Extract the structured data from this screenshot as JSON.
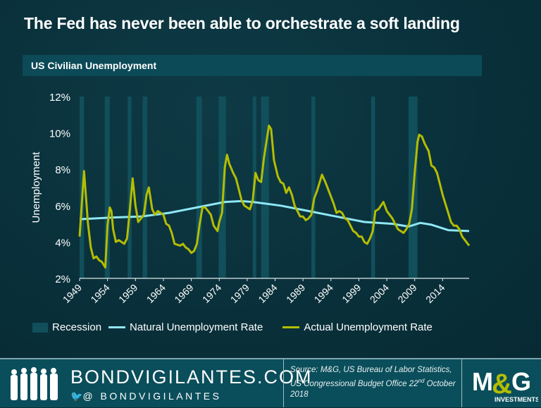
{
  "header": {
    "title": "The Fed has never been able to orchestrate a soft landing",
    "subtitle": "US Civilian Unemployment"
  },
  "chart_data": {
    "type": "line",
    "ylabel": "Unemployment",
    "ylim": [
      2,
      12
    ],
    "yticks": [
      "2%",
      "4%",
      "6%",
      "8%",
      "10%",
      "12%"
    ],
    "ytick_values": [
      2,
      4,
      6,
      8,
      10,
      12
    ],
    "xlim": [
      1949,
      2018.75
    ],
    "xticks": [
      "1949",
      "1954",
      "1959",
      "1964",
      "1969",
      "1974",
      "1979",
      "1984",
      "1989",
      "1994",
      "1999",
      "2004",
      "2009",
      "2014"
    ],
    "grid": false,
    "legend_placement": "bottom",
    "recessions": [
      [
        1948.9,
        1949.8
      ],
      [
        1953.5,
        1954.4
      ],
      [
        1957.6,
        1958.3
      ],
      [
        1960.3,
        1961.1
      ],
      [
        1969.9,
        1970.9
      ],
      [
        1973.9,
        1975.2
      ],
      [
        1980.0,
        1980.5
      ],
      [
        1981.5,
        1982.9
      ],
      [
        1990.5,
        1991.2
      ],
      [
        2001.2,
        2001.9
      ],
      [
        2007.9,
        2009.5
      ]
    ],
    "series": [
      {
        "name": "Natural Unemployment Rate",
        "color": "#8ee8f5",
        "points": [
          [
            1949,
            5.25
          ],
          [
            1955,
            5.35
          ],
          [
            1960,
            5.4
          ],
          [
            1965,
            5.6
          ],
          [
            1970,
            5.9
          ],
          [
            1975,
            6.2
          ],
          [
            1978,
            6.25
          ],
          [
            1980,
            6.2
          ],
          [
            1985,
            6.0
          ],
          [
            1990,
            5.7
          ],
          [
            1995,
            5.4
          ],
          [
            2000,
            5.1
          ],
          [
            2005,
            5.0
          ],
          [
            2007.9,
            4.85
          ],
          [
            2010,
            5.05
          ],
          [
            2012,
            4.95
          ],
          [
            2015,
            4.65
          ],
          [
            2018.75,
            4.6
          ]
        ]
      },
      {
        "name": "Actual Unemployment Rate",
        "color": "#b4bd00",
        "points": [
          [
            1949,
            4.3
          ],
          [
            1949.8,
            7.9
          ],
          [
            1950.5,
            5.0
          ],
          [
            1951,
            3.7
          ],
          [
            1951.5,
            3.1
          ],
          [
            1952,
            3.2
          ],
          [
            1952.5,
            3.0
          ],
          [
            1953,
            2.9
          ],
          [
            1953.6,
            2.6
          ],
          [
            1954,
            4.9
          ],
          [
            1954.4,
            5.9
          ],
          [
            1954.7,
            5.7
          ],
          [
            1955,
            4.7
          ],
          [
            1955.5,
            4.0
          ],
          [
            1956,
            4.1
          ],
          [
            1956.5,
            4.0
          ],
          [
            1957,
            3.9
          ],
          [
            1957.5,
            4.2
          ],
          [
            1958,
            5.8
          ],
          [
            1958.5,
            7.5
          ],
          [
            1959,
            6.0
          ],
          [
            1959.5,
            5.1
          ],
          [
            1960,
            5.3
          ],
          [
            1960.5,
            5.5
          ],
          [
            1961,
            6.6
          ],
          [
            1961.4,
            7.0
          ],
          [
            1962,
            5.8
          ],
          [
            1962.5,
            5.5
          ],
          [
            1963,
            5.7
          ],
          [
            1963.5,
            5.6
          ],
          [
            1964,
            5.5
          ],
          [
            1964.5,
            5.0
          ],
          [
            1965,
            4.9
          ],
          [
            1965.5,
            4.5
          ],
          [
            1966,
            3.9
          ],
          [
            1967,
            3.8
          ],
          [
            1967.5,
            3.9
          ],
          [
            1968,
            3.7
          ],
          [
            1968.5,
            3.6
          ],
          [
            1969,
            3.4
          ],
          [
            1969.5,
            3.5
          ],
          [
            1970,
            3.9
          ],
          [
            1970.5,
            5.0
          ],
          [
            1971,
            5.9
          ],
          [
            1971.5,
            5.9
          ],
          [
            1972,
            5.7
          ],
          [
            1972.5,
            5.5
          ],
          [
            1973,
            4.9
          ],
          [
            1973.7,
            4.6
          ],
          [
            1974,
            5.1
          ],
          [
            1974.5,
            5.6
          ],
          [
            1975,
            8.1
          ],
          [
            1975.4,
            8.8
          ],
          [
            1975.8,
            8.3
          ],
          [
            1976.5,
            7.8
          ],
          [
            1977,
            7.5
          ],
          [
            1977.5,
            6.9
          ],
          [
            1978,
            6.3
          ],
          [
            1978.5,
            6.0
          ],
          [
            1979,
            5.9
          ],
          [
            1979.5,
            5.8
          ],
          [
            1980,
            6.3
          ],
          [
            1980.5,
            7.8
          ],
          [
            1981,
            7.4
          ],
          [
            1981.5,
            7.3
          ],
          [
            1982,
            8.6
          ],
          [
            1982.5,
            9.6
          ],
          [
            1982.9,
            10.4
          ],
          [
            1983.3,
            10.2
          ],
          [
            1983.8,
            8.5
          ],
          [
            1984.5,
            7.6
          ],
          [
            1985,
            7.3
          ],
          [
            1985.5,
            7.2
          ],
          [
            1986,
            6.7
          ],
          [
            1986.5,
            7.0
          ],
          [
            1987,
            6.6
          ],
          [
            1987.5,
            6.0
          ],
          [
            1988,
            5.7
          ],
          [
            1988.5,
            5.4
          ],
          [
            1989,
            5.4
          ],
          [
            1989.5,
            5.2
          ],
          [
            1990,
            5.3
          ],
          [
            1990.5,
            5.5
          ],
          [
            1991,
            6.4
          ],
          [
            1991.5,
            6.8
          ],
          [
            1992.4,
            7.7
          ],
          [
            1993,
            7.3
          ],
          [
            1993.5,
            6.9
          ],
          [
            1994,
            6.5
          ],
          [
            1994.5,
            6.1
          ],
          [
            1995,
            5.6
          ],
          [
            1995.5,
            5.7
          ],
          [
            1996,
            5.6
          ],
          [
            1996.5,
            5.3
          ],
          [
            1997,
            5.2
          ],
          [
            1997.5,
            4.9
          ],
          [
            1998,
            4.6
          ],
          [
            1998.5,
            4.5
          ],
          [
            1999,
            4.3
          ],
          [
            1999.5,
            4.3
          ],
          [
            2000,
            4.0
          ],
          [
            2000.5,
            3.9
          ],
          [
            2001,
            4.2
          ],
          [
            2001.5,
            4.6
          ],
          [
            2001.95,
            5.7
          ],
          [
            2002.5,
            5.8
          ],
          [
            2003.4,
            6.2
          ],
          [
            2004,
            5.7
          ],
          [
            2004.5,
            5.5
          ],
          [
            2005,
            5.3
          ],
          [
            2005.5,
            5.0
          ],
          [
            2006,
            4.7
          ],
          [
            2006.5,
            4.6
          ],
          [
            2007,
            4.5
          ],
          [
            2007.5,
            4.7
          ],
          [
            2008,
            5.0
          ],
          [
            2008.5,
            5.8
          ],
          [
            2009,
            7.8
          ],
          [
            2009.5,
            9.5
          ],
          [
            2009.8,
            9.9
          ],
          [
            2010.3,
            9.8
          ],
          [
            2010.8,
            9.4
          ],
          [
            2011.5,
            9.0
          ],
          [
            2012,
            8.2
          ],
          [
            2012.5,
            8.1
          ],
          [
            2013,
            7.8
          ],
          [
            2013.5,
            7.2
          ],
          [
            2014,
            6.6
          ],
          [
            2014.5,
            6.1
          ],
          [
            2015,
            5.6
          ],
          [
            2015.5,
            5.1
          ],
          [
            2016,
            4.9
          ],
          [
            2016.5,
            4.9
          ],
          [
            2017,
            4.7
          ],
          [
            2017.5,
            4.3
          ],
          [
            2018,
            4.1
          ],
          [
            2018.75,
            3.8
          ]
        ]
      }
    ],
    "legend": {
      "recession": "Recession",
      "recession_color": "#114f5b"
    }
  },
  "footer": {
    "site": "BONDVIGILANTES.COM",
    "twitter": "@ BONDVIGILANTES",
    "source": "Source: M&G, US Bureau of Labor Statistics, US Congressional Budget Office 22",
    "source_sup": "nd",
    "source_end": " October 2018",
    "logo": "M&G",
    "logo_sub": "INVESTMENTS"
  }
}
